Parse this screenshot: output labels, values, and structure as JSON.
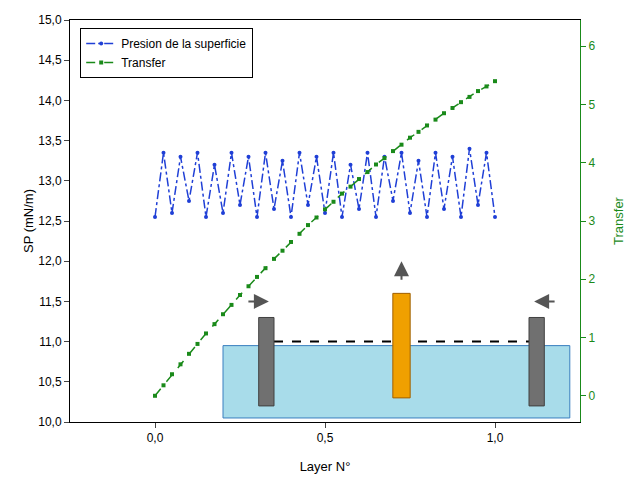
{
  "chart_data": {
    "type": "line",
    "x_label": "Layer N°",
    "y_label": "SP (mN/m)",
    "y2_label": "Transfer",
    "legend": "top-left",
    "xlim": [
      -0.25,
      1.25
    ],
    "xticks": [
      {
        "value": 0,
        "label": "0,0"
      },
      {
        "value": 0.5,
        "label": "0,5"
      },
      {
        "value": 1,
        "label": "1,0"
      }
    ],
    "ylim": [
      10,
      15
    ],
    "yticks": [
      {
        "value": 10,
        "label": "10,0"
      },
      {
        "value": 10.5,
        "label": "10,5"
      },
      {
        "value": 11,
        "label": "11,0"
      },
      {
        "value": 11.5,
        "label": "11,5"
      },
      {
        "value": 12,
        "label": "12,0"
      },
      {
        "value": 12.5,
        "label": "12,5"
      },
      {
        "value": 13,
        "label": "13,0"
      },
      {
        "value": 13.5,
        "label": "13,5"
      },
      {
        "value": 14,
        "label": "14,0"
      },
      {
        "value": 14.5,
        "label": "14,5"
      },
      {
        "value": 15,
        "label": "15,0"
      }
    ],
    "y2lim": [
      -0.45,
      6.45
    ],
    "y2ticks": [
      0,
      1,
      2,
      3,
      4,
      5,
      6
    ],
    "x": [
      0,
      0.025,
      0.05,
      0.075,
      0.1,
      0.125,
      0.15,
      0.175,
      0.2,
      0.225,
      0.25,
      0.275,
      0.3,
      0.325,
      0.35,
      0.375,
      0.4,
      0.425,
      0.45,
      0.475,
      0.5,
      0.525,
      0.55,
      0.575,
      0.6,
      0.625,
      0.65,
      0.675,
      0.7,
      0.725,
      0.75,
      0.775,
      0.8,
      0.825,
      0.85,
      0.875,
      0.9,
      0.925,
      0.95,
      0.975,
      1.0
    ],
    "series": [
      {
        "name": "Presion de la superficie",
        "color": "#1f3fd6",
        "marker": "circle",
        "line_style": "dashdot",
        "axis": "y",
        "values": [
          12.55,
          13.35,
          12.6,
          13.3,
          12.75,
          13.35,
          12.55,
          13.2,
          12.6,
          13.35,
          12.7,
          13.3,
          12.55,
          13.35,
          12.65,
          13.25,
          12.55,
          13.35,
          12.7,
          13.3,
          12.6,
          13.35,
          12.55,
          13.2,
          12.65,
          13.35,
          12.55,
          13.3,
          12.75,
          13.35,
          12.6,
          13.25,
          12.55,
          13.35,
          12.65,
          13.3,
          12.55,
          13.4,
          12.7,
          13.35,
          12.55
        ]
      },
      {
        "name": "Transfer",
        "color": "#1a8a1a",
        "marker": "square",
        "line_style": "dash",
        "axis": "y2",
        "values": [
          0,
          0.18,
          0.37,
          0.54,
          0.72,
          0.89,
          1.07,
          1.23,
          1.4,
          1.56,
          1.73,
          1.88,
          2.04,
          2.19,
          2.35,
          2.49,
          2.64,
          2.78,
          2.93,
          3.06,
          3.2,
          3.33,
          3.47,
          3.59,
          3.72,
          3.84,
          3.97,
          4.08,
          4.2,
          4.31,
          4.43,
          4.53,
          4.64,
          4.74,
          4.85,
          4.94,
          5.04,
          5.13,
          5.23,
          5.31,
          5.4
        ]
      }
    ]
  }
}
